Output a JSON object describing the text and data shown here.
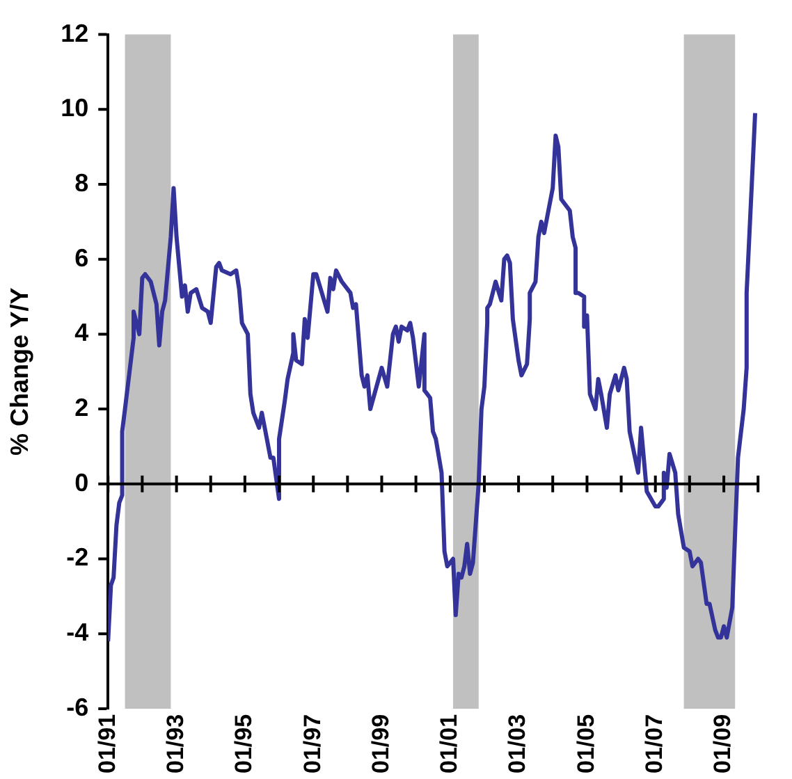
{
  "chart_data": {
    "type": "line",
    "ylabel": "% Change Y/Y",
    "x": [
      "1991-01",
      "1991-02",
      "1991-03",
      "1991-04",
      "1991-05",
      "1991-06",
      "1991-06",
      "1991-07",
      "1991-10",
      "1991-10",
      "1991-12",
      "1992-01",
      "1992-02",
      "1992-04",
      "1992-06",
      "1992-07",
      "1992-08",
      "1992-09",
      "1992-11",
      "1992-12",
      "1993-01",
      "1993-03",
      "1993-04",
      "1993-05",
      "1993-06",
      "1993-08",
      "1993-10",
      "1993-12",
      "1994-01",
      "1994-03",
      "1994-04",
      "1994-05",
      "1994-08",
      "1994-10",
      "1994-11",
      "1994-12",
      "1995-02",
      "1995-03",
      "1995-04",
      "1995-06",
      "1995-07",
      "1995-08",
      "1995-10",
      "1995-11",
      "1996-01",
      "1996-01",
      "1996-03",
      "1996-04",
      "1996-06",
      "1996-06",
      "1996-07",
      "1996-09",
      "1996-10",
      "1996-11",
      "1997-01",
      "1997-02",
      "1997-06",
      "1997-07",
      "1997-08",
      "1997-09",
      "1997-11",
      "1998-02",
      "1998-03",
      "1998-04",
      "1998-06",
      "1998-07",
      "1998-08",
      "1998-09",
      "1999-01",
      "1999-03",
      "1999-05",
      "1999-06",
      "1999-07",
      "1999-08",
      "1999-10",
      "1999-11",
      "1999-12",
      "2000-02",
      "2000-04",
      "2000-04",
      "2000-06",
      "2000-07",
      "2000-08",
      "2000-10",
      "2000-11",
      "2000-12",
      "2001-01",
      "2001-02",
      "2001-03",
      "2001-04",
      "2001-05",
      "2001-06",
      "2001-07",
      "2001-08",
      "2001-09",
      "2001-11",
      "2001-12",
      "2002-01",
      "2002-02",
      "2002-02",
      "2002-03",
      "2002-05",
      "2002-07",
      "2002-08",
      "2002-09",
      "2002-10",
      "2002-11",
      "2003-01",
      "2003-02",
      "2003-04",
      "2003-05",
      "2003-05",
      "2003-07",
      "2003-08",
      "2003-09",
      "2003-10",
      "2004-01",
      "2004-02",
      "2004-03",
      "2004-04",
      "2004-07",
      "2004-08",
      "2004-09",
      "2004-09",
      "2004-10",
      "2004-12",
      "2004-12",
      "2005-01",
      "2005-02",
      "2005-04",
      "2005-05",
      "2005-06",
      "2005-08",
      "2005-09",
      "2005-11",
      "2005-12",
      "2006-02",
      "2006-03",
      "2006-04",
      "2006-07",
      "2006-08",
      "2006-10",
      "2007-01",
      "2007-02",
      "2007-04",
      "2007-04",
      "2007-05",
      "2007-06",
      "2007-08",
      "2007-09",
      "2007-11",
      "2008-01",
      "2008-02",
      "2008-04",
      "2008-05",
      "2008-07",
      "2008-08",
      "2008-10",
      "2008-11",
      "2008-12",
      "2009-01",
      "2009-02",
      "2009-04",
      "2009-05",
      "2009-06",
      "2009-08",
      "2009-09",
      "2009-09",
      "2009-11",
      "2009-12"
    ],
    "values": [
      -4.2,
      -2.7,
      -2.5,
      -1.1,
      -0.5,
      -0.3,
      1.4,
      2.0,
      3.9,
      4.6,
      4.0,
      5.5,
      5.6,
      5.4,
      4.8,
      3.7,
      4.6,
      4.9,
      6.6,
      7.9,
      6.6,
      5.0,
      5.3,
      4.6,
      5.1,
      5.2,
      4.7,
      4.6,
      4.3,
      5.8,
      5.9,
      5.7,
      5.6,
      5.7,
      5.2,
      4.3,
      4.0,
      2.4,
      1.9,
      1.5,
      1.9,
      1.5,
      0.7,
      0.7,
      -0.4,
      1.2,
      2.2,
      2.8,
      3.5,
      4.0,
      3.3,
      3.2,
      4.4,
      3.9,
      5.6,
      5.6,
      4.6,
      5.5,
      5.2,
      5.7,
      5.4,
      5.1,
      4.7,
      4.8,
      2.9,
      2.6,
      2.9,
      2.0,
      3.1,
      2.6,
      4.0,
      4.2,
      3.8,
      4.2,
      4.1,
      4.3,
      3.9,
      2.6,
      4.0,
      2.5,
      2.3,
      1.4,
      1.2,
      0.3,
      -1.8,
      -2.2,
      -2.1,
      -2.0,
      -3.5,
      -2.4,
      -2.5,
      -2.2,
      -1.6,
      -2.4,
      -2.1,
      0.0,
      2.0,
      2.6,
      4.3,
      4.7,
      4.8,
      5.4,
      4.9,
      6.0,
      6.1,
      5.9,
      4.4,
      3.3,
      2.9,
      3.2,
      4.4,
      5.1,
      5.4,
      6.6,
      7.0,
      6.7,
      7.9,
      9.3,
      9.0,
      7.6,
      7.3,
      6.6,
      6.3,
      5.1,
      5.1,
      5.0,
      4.2,
      4.5,
      2.4,
      2.0,
      2.8,
      2.4,
      1.5,
      2.4,
      2.9,
      2.5,
      3.1,
      2.8,
      1.4,
      0.3,
      1.5,
      -0.2,
      -0.6,
      -0.6,
      -0.4,
      0.3,
      -0.1,
      0.8,
      0.3,
      -0.8,
      -1.7,
      -1.8,
      -2.2,
      -2.0,
      -2.1,
      -3.2,
      -3.2,
      -3.9,
      -4.1,
      -4.1,
      -3.8,
      -4.1,
      -3.3,
      -1.3,
      0.7,
      2.0,
      3.1,
      5.1,
      8.3,
      9.9
    ],
    "color": "#333399",
    "line_style": "solid",
    "marker": "none",
    "xlim": [
      "1991-01",
      "2010-01"
    ],
    "xticks": [
      {
        "value": "1991-01",
        "label": "01/91"
      },
      {
        "value": "1992-01",
        "label": null
      },
      {
        "value": "1993-01",
        "label": "01/93"
      },
      {
        "value": "1994-01",
        "label": null
      },
      {
        "value": "1995-01",
        "label": "01/95"
      },
      {
        "value": "1996-01",
        "label": null
      },
      {
        "value": "1997-01",
        "label": "01/97"
      },
      {
        "value": "1998-01",
        "label": null
      },
      {
        "value": "1999-01",
        "label": "01/99"
      },
      {
        "value": "2000-01",
        "label": null
      },
      {
        "value": "2001-01",
        "label": "01/01"
      },
      {
        "value": "2002-01",
        "label": null
      },
      {
        "value": "2003-01",
        "label": "01/03"
      },
      {
        "value": "2004-01",
        "label": null
      },
      {
        "value": "2005-01",
        "label": "01/05"
      },
      {
        "value": "2006-01",
        "label": null
      },
      {
        "value": "2007-01",
        "label": "01/07"
      },
      {
        "value": "2008-01",
        "label": null
      },
      {
        "value": "2009-01",
        "label": "01/09"
      },
      {
        "value": "2010-01",
        "label": null
      }
    ],
    "ylim": [
      -6,
      12
    ],
    "yticks": [
      -6,
      -4,
      -2,
      0,
      2,
      4,
      6,
      8,
      10,
      12
    ],
    "bands": [
      {
        "axis": "x",
        "from": "1991-07",
        "to": "1992-11",
        "color": "#c0c0c0"
      },
      {
        "axis": "x",
        "from": "2001-02",
        "to": "2001-11",
        "color": "#c0c0c0"
      },
      {
        "axis": "x",
        "from": "2007-11",
        "to": "2009-05",
        "color": "#c0c0c0"
      }
    ],
    "ref_lines": [
      {
        "axis": "y",
        "value": 0,
        "color": "#000000",
        "line_style": "solid"
      }
    ],
    "grid": false,
    "legend": false
  }
}
